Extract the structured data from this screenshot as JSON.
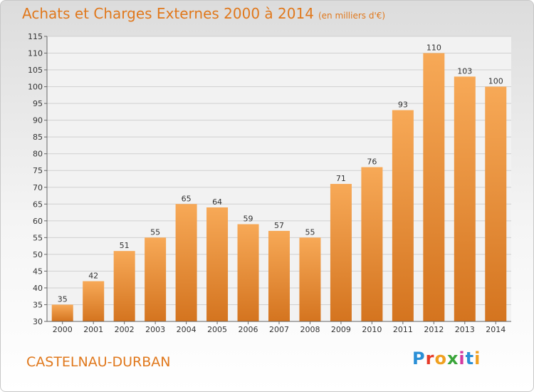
{
  "header": {
    "title": "Achats et Charges Externes 2000 à 2014",
    "unit": "(en milliers d'€)"
  },
  "footer": {
    "city": "CASTELNAU-DURBAN",
    "logo": [
      "P",
      "r",
      "o",
      "x",
      "i",
      "t",
      "i"
    ]
  },
  "colors": {
    "bar_light": "#f6a552",
    "bar_dark": "#d4741f",
    "title": "#e0781c"
  },
  "chart_data": {
    "type": "bar",
    "title": "Achats et Charges Externes 2000 à 2014",
    "subtitle": "(en milliers d'€)",
    "categories": [
      "2000",
      "2001",
      "2002",
      "2003",
      "2004",
      "2005",
      "2006",
      "2007",
      "2008",
      "2009",
      "2010",
      "2011",
      "2012",
      "2013",
      "2014"
    ],
    "values": [
      35,
      42,
      51,
      55,
      65,
      64,
      59,
      57,
      55,
      71,
      76,
      93,
      110,
      103,
      100
    ],
    "ylim": [
      30,
      115
    ],
    "yticks": [
      30,
      35,
      40,
      45,
      50,
      55,
      60,
      65,
      70,
      75,
      80,
      85,
      90,
      95,
      100,
      105,
      110,
      115
    ],
    "grid": true,
    "data_labels": true
  }
}
